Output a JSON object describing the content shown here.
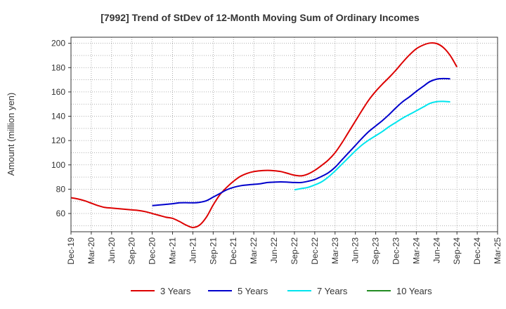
{
  "chart_data": {
    "type": "line",
    "title": "[7992]  Trend of StDev of 12-Month Moving Sum of Ordinary Incomes",
    "xlabel": "",
    "ylabel": "Amount (million yen)",
    "ylim": [
      45,
      205
    ],
    "y_ticks": [
      60,
      80,
      100,
      120,
      140,
      160,
      180,
      200
    ],
    "x_tick_labels": [
      "Dec-19",
      "Mar-20",
      "Jun-20",
      "Sep-20",
      "Dec-20",
      "Mar-21",
      "Jun-21",
      "Sep-21",
      "Dec-21",
      "Mar-22",
      "Jun-22",
      "Sep-22",
      "Dec-22",
      "Mar-23",
      "Jun-23",
      "Sep-23",
      "Dec-23",
      "Mar-24",
      "Jun-24",
      "Sep-24",
      "Dec-24",
      "Mar-25"
    ],
    "grid": true,
    "legend_position": "bottom",
    "series": [
      {
        "name": "3 Years",
        "color": "#dd0000",
        "start_index": 0,
        "values": [
          73,
          72,
          70.5,
          68.5,
          66.5,
          65,
          64.5,
          64,
          63.5,
          63,
          62.5,
          61.5,
          60,
          58.5,
          57,
          56,
          53.5,
          50.5,
          48.5,
          50.5,
          57,
          67,
          75.5,
          81.5,
          86.5,
          90.5,
          93,
          94.5,
          95.2,
          95.5,
          95.2,
          94.5,
          93,
          91.5,
          91,
          92.5,
          95.5,
          99.5,
          104,
          110,
          118,
          127,
          136,
          145,
          153.5,
          160.5,
          166.5,
          172,
          178,
          184.5,
          190.5,
          195.5,
          198.5,
          200.2,
          199.8,
          196.5,
          190,
          180.5
        ]
      },
      {
        "name": "5 Years",
        "color": "#0000cc",
        "start_index": 12,
        "values": [
          66.5,
          67,
          67.5,
          68,
          68.8,
          68.9,
          68.8,
          69.2,
          70.5,
          73.5,
          76.5,
          79.5,
          81.5,
          82.8,
          83.5,
          84,
          84.5,
          85.5,
          85.8,
          86,
          85.8,
          85.5,
          85.5,
          86.5,
          88,
          90.5,
          93.5,
          98,
          104,
          110,
          116,
          122,
          127.5,
          132,
          136.5,
          141.5,
          147,
          152,
          156,
          160.5,
          164.5,
          168.5,
          170.5,
          171,
          170.8
        ]
      },
      {
        "name": "7 Years",
        "color": "#00e5ee",
        "start_index": 33,
        "values": [
          79.5,
          80.5,
          81.5,
          83.5,
          86,
          90,
          95,
          100.5,
          106,
          111.5,
          116.5,
          120.5,
          124,
          127.5,
          131.5,
          135,
          138.5,
          141.5,
          144.5,
          147.5,
          150.5,
          152,
          152.2,
          151.8
        ]
      },
      {
        "name": "10 Years",
        "color": "#228b22",
        "start_index": 0,
        "values": []
      }
    ]
  }
}
